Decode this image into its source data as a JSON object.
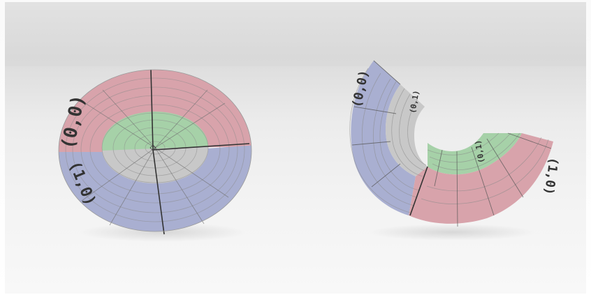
{
  "scene": {
    "background_color": "#ebebeb",
    "floor_color": "#f3f3f3"
  },
  "objects": [
    {
      "name": "flat-disk",
      "quadrant_colors": [
        "#d8a3ab",
        "#a9afd1",
        "#a9afd1",
        "#d8a3ab"
      ],
      "inner_ring_colors": [
        "#a6d1a8",
        "#c8c8c8"
      ],
      "edge_labels": [
        "(0,0)",
        "(1,0)"
      ]
    },
    {
      "name": "annular-sector",
      "band_colors": [
        "#a9afd1",
        "#c8c8c8",
        "#a6d1a8",
        "#d8a3ab"
      ],
      "edge_labels": [
        "(0,0)",
        "(1,0)",
        "(0,1)"
      ]
    }
  ]
}
